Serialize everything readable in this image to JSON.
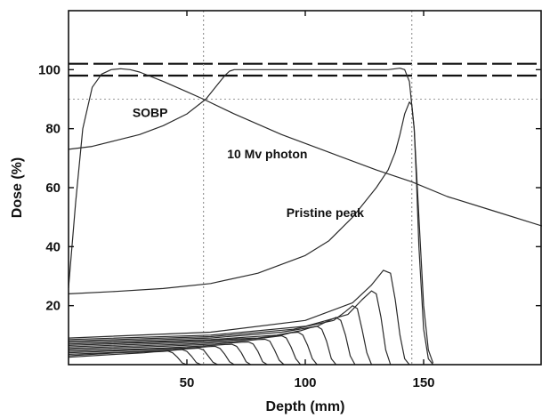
{
  "chart_data": {
    "type": "line",
    "title": "",
    "xlabel": "Depth (mm)",
    "ylabel": "Dose (%)",
    "xlim": [
      0,
      200
    ],
    "ylim": [
      0,
      120
    ],
    "x_ticks": [
      50,
      100,
      150
    ],
    "y_ticks": [
      20,
      40,
      60,
      80,
      100
    ],
    "grid": false,
    "colors": {
      "curves": "#2a2a2a",
      "axes": "#111111",
      "reference": "#999999"
    },
    "reference_lines": {
      "horizontal_dashed": [
        102,
        98
      ],
      "horizontal_dotted": [
        90
      ],
      "vertical_dotted": [
        57,
        145
      ]
    },
    "annotations": [
      {
        "text": "SOBP",
        "x": 27,
        "y": 84
      },
      {
        "text": "10 Mv photon",
        "x": 67,
        "y": 70
      },
      {
        "text": "Pristine peak",
        "x": 92,
        "y": 50
      }
    ],
    "series": [
      {
        "x": [
          0,
          3,
          6,
          10,
          14,
          18,
          22,
          26,
          30,
          40,
          50,
          57,
          70,
          90,
          110,
          130,
          145,
          160,
          180,
          200
        ],
        "y": [
          26,
          55,
          80,
          94,
          98.5,
          100,
          100.3,
          100,
          99.2,
          96,
          92.5,
          90,
          85,
          78,
          72,
          66,
          62,
          57,
          52,
          47
        ]
      },
      {
        "x": [
          0,
          10,
          20,
          30,
          40,
          50,
          58,
          63,
          66,
          68,
          70,
          80,
          100,
          120,
          135,
          140,
          142,
          144,
          146,
          148,
          150,
          152,
          154
        ],
        "y": [
          73,
          74,
          76,
          78,
          81,
          85,
          90,
          95,
          98,
          99.5,
          100,
          100,
          100,
          100,
          100,
          100.5,
          100,
          96,
          80,
          50,
          20,
          5,
          0.5
        ]
      },
      {
        "x": [
          0,
          20,
          40,
          60,
          80,
          100,
          110,
          120,
          130,
          135,
          138,
          140,
          142,
          144,
          145,
          146,
          147,
          148,
          150,
          152,
          154
        ],
        "y": [
          24,
          24.8,
          25.8,
          27.5,
          31,
          37,
          42,
          50,
          60,
          66,
          72,
          78,
          85,
          89,
          88,
          80,
          62,
          40,
          12,
          2,
          0
        ]
      },
      {
        "x": [
          0,
          60,
          100,
          120,
          128,
          133,
          136,
          138,
          140,
          142,
          144
        ],
        "y": [
          9,
          11,
          15,
          21,
          27,
          32,
          31,
          22,
          10,
          2,
          0
        ]
      },
      {
        "x": [
          0,
          60,
          100,
          118,
          124,
          128,
          130,
          132,
          134,
          136
        ],
        "y": [
          8.5,
          10,
          13,
          17,
          22,
          25,
          24,
          16,
          5,
          0
        ]
      },
      {
        "x": [
          0,
          60,
          95,
          112,
          117,
          120,
          122,
          124,
          126,
          128
        ],
        "y": [
          8,
          9.5,
          12,
          15,
          18,
          20,
          19,
          12,
          4,
          0
        ]
      },
      {
        "x": [
          0,
          60,
          90,
          105,
          110,
          113,
          115,
          117,
          119,
          121
        ],
        "y": [
          7.5,
          9,
          11,
          13,
          15,
          16,
          15,
          10,
          3,
          0
        ]
      },
      {
        "x": [
          0,
          60,
          88,
          98,
          102,
          105,
          107,
          109,
          111,
          113
        ],
        "y": [
          7,
          8.5,
          10,
          11.5,
          12.5,
          13,
          12,
          8,
          2,
          0
        ]
      },
      {
        "x": [
          0,
          50,
          80,
          90,
          94,
          97,
          99,
          101,
          103,
          105
        ],
        "y": [
          6.5,
          8,
          9,
          10,
          10.8,
          11,
          10,
          6.5,
          2,
          0
        ]
      },
      {
        "x": [
          0,
          50,
          75,
          82,
          87,
          90,
          92,
          94,
          96,
          98
        ],
        "y": [
          6,
          7.5,
          8.5,
          9,
          9.5,
          9.8,
          9,
          6,
          2,
          0
        ]
      },
      {
        "x": [
          0,
          50,
          70,
          76,
          80,
          83,
          85,
          87,
          89,
          91
        ],
        "y": [
          5.5,
          7,
          7.8,
          8.2,
          8.5,
          8.6,
          8,
          5,
          1.5,
          0
        ]
      },
      {
        "x": [
          0,
          40,
          62,
          69,
          73,
          76,
          78,
          80,
          82,
          84
        ],
        "y": [
          5,
          6.2,
          7,
          7.4,
          7.6,
          7.7,
          7,
          4.5,
          1,
          0
        ]
      },
      {
        "x": [
          0,
          40,
          56,
          62,
          66,
          69,
          71,
          73,
          75,
          77
        ],
        "y": [
          4.5,
          5.6,
          6.3,
          6.6,
          6.8,
          6.9,
          6.2,
          4,
          1,
          0
        ]
      },
      {
        "x": [
          0,
          30,
          50,
          56,
          59,
          62,
          64,
          66,
          68,
          70
        ],
        "y": [
          4,
          5,
          5.6,
          5.9,
          6.1,
          6.2,
          5.5,
          3.5,
          1,
          0
        ]
      },
      {
        "x": [
          0,
          30,
          44,
          49,
          53,
          55,
          57,
          59,
          61,
          63
        ],
        "y": [
          3.5,
          4.5,
          5,
          5.3,
          5.5,
          5.6,
          5,
          3,
          0.8,
          0
        ]
      },
      {
        "x": [
          0,
          20,
          38,
          43,
          46,
          48,
          50,
          52,
          54,
          56
        ],
        "y": [
          3,
          4,
          4.5,
          4.8,
          5,
          5.1,
          4.5,
          2.8,
          0.7,
          0
        ]
      },
      {
        "x": [
          0,
          20,
          32,
          36,
          40,
          42,
          44,
          46,
          48,
          50
        ],
        "y": [
          2.5,
          3.5,
          4,
          4.3,
          4.5,
          4.6,
          4,
          2.5,
          0.6,
          0
        ]
      }
    ]
  }
}
